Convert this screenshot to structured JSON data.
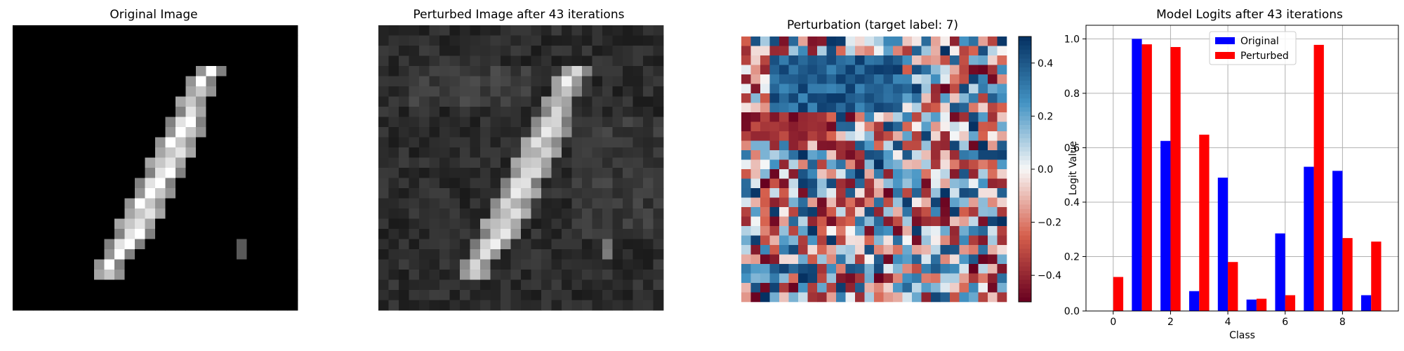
{
  "chart_data": [
    {
      "type": "image",
      "title": "Original Image",
      "description_hidden": false,
      "mnist_digit_shown": "1"
    },
    {
      "type": "image",
      "title": "Perturbed Image after 43 iterations"
    },
    {
      "type": "heatmap",
      "title": "Perturbation (target label: 7)",
      "colormap": "RdBu",
      "colorbar": {
        "range": [
          -0.5,
          0.5
        ],
        "ticks": [
          0.4,
          0.2,
          0.0,
          -0.2,
          -0.4
        ],
        "tick_labels": [
          "0.4",
          "0.2",
          "0.0",
          "−0.2",
          "−0.4"
        ]
      }
    },
    {
      "type": "bar",
      "title": "Model Logits after 43 iterations",
      "xlabel": "Class",
      "ylabel": "Logit Value",
      "categories": [
        0,
        1,
        2,
        3,
        4,
        5,
        6,
        7,
        8,
        9
      ],
      "x_ticks": [
        0,
        2,
        4,
        6,
        8
      ],
      "y_ticks": [
        0.0,
        0.2,
        0.4,
        0.6,
        0.8,
        1.0
      ],
      "y_tick_labels": [
        "0.0",
        "0.2",
        "0.4",
        "0.6",
        "0.8",
        "1.0"
      ],
      "ylim": [
        0,
        1.05
      ],
      "grid": true,
      "legend_position": "top-center",
      "series": [
        {
          "name": "Original",
          "color": "#0000ff",
          "values": [
            0.0,
            1.0,
            0.625,
            0.073,
            0.49,
            0.042,
            0.285,
            0.53,
            0.515,
            0.058
          ]
        },
        {
          "name": "Perturbed",
          "color": "#ff0000",
          "values": [
            0.125,
            0.98,
            0.97,
            0.648,
            0.18,
            0.045,
            0.058,
            0.978,
            0.268,
            0.255
          ]
        }
      ]
    }
  ]
}
